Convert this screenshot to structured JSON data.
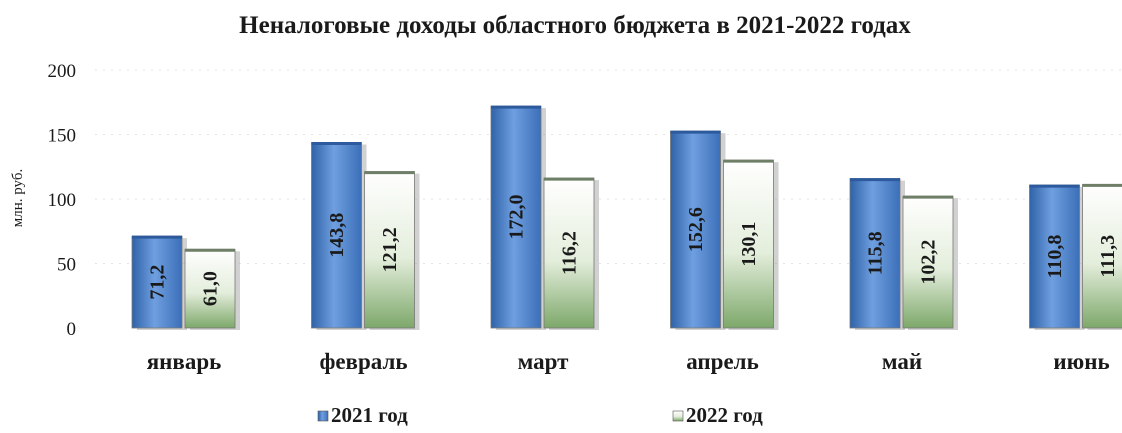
{
  "chart_data": {
    "type": "bar",
    "title": "Неналоговые доходы областного бюджета в 2021-2022 годах",
    "ylabel": "млн. руб.",
    "xlabel": "",
    "ylim": [
      0,
      200
    ],
    "yticks": [
      0,
      50,
      100,
      150,
      200
    ],
    "categories": [
      "январь",
      "февраль",
      "март",
      "апрель",
      "май",
      "июнь"
    ],
    "series": [
      {
        "name": "2021 год",
        "values": [
          71.2,
          143.8,
          172.0,
          152.6,
          115.8,
          110.8
        ],
        "labels": [
          "71,2",
          "143,8",
          "172,0",
          "152,6",
          "115,8",
          "110,8"
        ],
        "color": "#4f86cf"
      },
      {
        "name": "2022 год",
        "values": [
          61.0,
          121.2,
          116.2,
          130.1,
          102.2,
          111.3
        ],
        "labels": [
          "61,0",
          "121,2",
          "116,2",
          "130,1",
          "102,2",
          "111,3"
        ],
        "color": "#a9c49a"
      }
    ],
    "grid": true,
    "legend": "bottom"
  }
}
